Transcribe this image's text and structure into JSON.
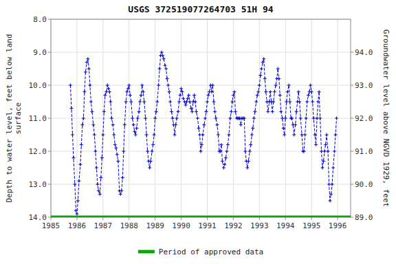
{
  "chart_data": {
    "type": "line",
    "title": "USGS 372519077264703 51H 94",
    "y_label": "Depth to water level, feet below land\nsurface",
    "y2_label": "Groundwater level above NGVD 1929, feet",
    "ylim": [
      14.0,
      8.0
    ],
    "yticks": [
      {
        "value": 8.0,
        "label": "8.0"
      },
      {
        "value": 9.0,
        "label": "9.0"
      },
      {
        "value": 10.0,
        "label": "10.0"
      },
      {
        "value": 11.0,
        "label": "11.0"
      },
      {
        "value": 12.0,
        "label": "12.0"
      },
      {
        "value": 13.0,
        "label": "13.0"
      },
      {
        "value": 14.0,
        "label": "14.0"
      }
    ],
    "y2lim": [
      89.0,
      95.0
    ],
    "y2ticks": [
      {
        "value": 89.0,
        "label": "89.0"
      },
      {
        "value": 90.0,
        "label": "90.0"
      },
      {
        "value": 91.0,
        "label": "91.0"
      },
      {
        "value": 92.0,
        "label": "92.0"
      },
      {
        "value": 93.0,
        "label": "93.0"
      },
      {
        "value": 94.0,
        "label": "94.0"
      }
    ],
    "xlim": [
      1985.0,
      1996.5
    ],
    "xticks": [
      1985,
      1986,
      1987,
      1988,
      1989,
      1990,
      1991,
      1992,
      1993,
      1994,
      1995,
      1996
    ],
    "grid": true,
    "legend": "bottom",
    "series": [
      {
        "color": "#0000CC",
        "marker": "plus",
        "line_style": "dashed",
        "x": [
          1985.75,
          1985.79,
          1985.83,
          1985.87,
          1985.92,
          1985.96,
          1986.0,
          1986.04,
          1986.08,
          1986.13,
          1986.17,
          1986.21,
          1986.25,
          1986.29,
          1986.33,
          1986.38,
          1986.42,
          1986.46,
          1986.5,
          1986.54,
          1986.58,
          1986.63,
          1986.67,
          1986.71,
          1986.75,
          1986.79,
          1986.83,
          1986.88,
          1986.92,
          1986.96,
          1987.0,
          1987.04,
          1987.08,
          1987.13,
          1987.17,
          1987.21,
          1987.25,
          1987.29,
          1987.33,
          1987.38,
          1987.42,
          1987.46,
          1987.5,
          1987.54,
          1987.58,
          1987.63,
          1987.67,
          1987.71,
          1987.75,
          1987.79,
          1987.83,
          1987.88,
          1987.92,
          1987.96,
          1988.0,
          1988.04,
          1988.08,
          1988.13,
          1988.17,
          1988.21,
          1988.25,
          1988.29,
          1988.33,
          1988.38,
          1988.42,
          1988.46,
          1988.5,
          1988.54,
          1988.58,
          1988.63,
          1988.67,
          1988.71,
          1988.75,
          1988.79,
          1988.83,
          1988.88,
          1988.92,
          1988.96,
          1989.0,
          1989.04,
          1989.08,
          1989.13,
          1989.17,
          1989.21,
          1989.25,
          1989.29,
          1989.33,
          1989.38,
          1989.42,
          1989.46,
          1989.5,
          1989.54,
          1989.58,
          1989.63,
          1989.67,
          1989.71,
          1989.75,
          1989.79,
          1989.83,
          1989.88,
          1989.92,
          1989.96,
          1990.0,
          1990.04,
          1990.08,
          1990.13,
          1990.17,
          1990.21,
          1990.25,
          1990.29,
          1990.33,
          1990.38,
          1990.42,
          1990.46,
          1990.5,
          1990.54,
          1990.58,
          1990.63,
          1990.67,
          1990.71,
          1990.75,
          1990.79,
          1990.83,
          1990.88,
          1990.92,
          1990.96,
          1991.0,
          1991.04,
          1991.08,
          1991.13,
          1991.17,
          1991.21,
          1991.25,
          1991.29,
          1991.33,
          1991.38,
          1991.42,
          1991.46,
          1991.5,
          1991.54,
          1991.58,
          1991.63,
          1991.67,
          1991.71,
          1991.75,
          1991.79,
          1991.83,
          1991.88,
          1991.92,
          1991.96,
          1992.0,
          1992.04,
          1992.08,
          1992.13,
          1992.17,
          1992.21,
          1992.25,
          1992.29,
          1992.33,
          1992.38,
          1992.42,
          1992.46,
          1992.5,
          1992.54,
          1992.58,
          1992.63,
          1992.67,
          1992.71,
          1992.75,
          1992.79,
          1992.83,
          1992.88,
          1992.92,
          1992.96,
          1993.0,
          1993.04,
          1993.08,
          1993.13,
          1993.17,
          1993.21,
          1993.25,
          1993.29,
          1993.33,
          1993.38,
          1993.42,
          1993.46,
          1993.5,
          1993.54,
          1993.58,
          1993.63,
          1993.67,
          1993.71,
          1993.75,
          1993.79,
          1993.83,
          1993.88,
          1993.92,
          1993.96,
          1994.0,
          1994.04,
          1994.08,
          1994.13,
          1994.17,
          1994.21,
          1994.25,
          1994.29,
          1994.33,
          1994.38,
          1994.42,
          1994.46,
          1994.5,
          1994.54,
          1994.58,
          1994.63,
          1994.67,
          1994.71,
          1994.75,
          1994.79,
          1994.83,
          1994.88,
          1994.92,
          1994.96,
          1995.0,
          1995.04,
          1995.08,
          1995.13,
          1995.17,
          1995.21,
          1995.25,
          1995.29,
          1995.33,
          1995.38,
          1995.42,
          1995.46,
          1995.5,
          1995.54,
          1995.58,
          1995.63,
          1995.67,
          1995.71,
          1995.75,
          1995.79,
          1995.83,
          1995.88,
          1995.92,
          1995.96
        ],
        "values": [
          10.0,
          10.7,
          11.5,
          12.2,
          13.0,
          13.8,
          13.9,
          13.5,
          12.9,
          12.4,
          11.8,
          11.2,
          11.0,
          10.2,
          9.6,
          9.3,
          9.2,
          9.5,
          10.0,
          10.5,
          10.8,
          11.2,
          11.5,
          12.0,
          12.5,
          13.0,
          13.2,
          13.3,
          12.8,
          12.2,
          11.5,
          10.8,
          10.3,
          10.2,
          10.0,
          10.1,
          10.2,
          10.5,
          11.0,
          11.2,
          11.5,
          11.8,
          11.9,
          12.1,
          12.3,
          13.2,
          13.3,
          13.2,
          12.8,
          12.0,
          11.2,
          10.5,
          10.2,
          10.1,
          10.0,
          10.3,
          10.5,
          11.0,
          11.2,
          11.4,
          11.5,
          11.3,
          11.0,
          10.8,
          10.5,
          10.3,
          10.0,
          10.2,
          10.5,
          11.0,
          11.5,
          12.0,
          12.3,
          12.5,
          12.3,
          12.0,
          11.8,
          11.5,
          11.0,
          10.8,
          10.5,
          10.0,
          9.5,
          9.1,
          9.0,
          9.1,
          9.2,
          9.4,
          9.5,
          9.8,
          10.0,
          10.2,
          10.5,
          10.8,
          11.0,
          11.2,
          11.5,
          11.2,
          11.0,
          10.8,
          10.5,
          10.3,
          10.1,
          10.2,
          10.4,
          10.5,
          10.6,
          10.5,
          10.4,
          10.3,
          10.5,
          10.7,
          10.8,
          10.5,
          10.3,
          10.5,
          10.8,
          11.0,
          11.3,
          11.5,
          12.0,
          11.8,
          11.5,
          11.2,
          11.0,
          10.8,
          10.5,
          10.3,
          10.2,
          10.0,
          10.2,
          10.0,
          10.5,
          10.8,
          11.0,
          11.2,
          11.5,
          12.0,
          12.0,
          11.8,
          12.3,
          12.5,
          12.4,
          12.2,
          12.0,
          11.8,
          11.5,
          11.0,
          10.8,
          10.5,
          10.3,
          10.2,
          10.8,
          11.0,
          11.0,
          11.0,
          11.0,
          11.2,
          11.0,
          11.0,
          11.0,
          12.0,
          12.3,
          12.5,
          12.3,
          12.0,
          11.8,
          11.5,
          11.3,
          11.0,
          10.8,
          10.5,
          10.3,
          10.2,
          10.0,
          9.7,
          9.5,
          9.3,
          9.2,
          9.8,
          10.2,
          10.5,
          10.8,
          10.5,
          10.2,
          10.5,
          10.8,
          10.5,
          10.2,
          10.0,
          9.8,
          9.5,
          9.8,
          10.3,
          10.8,
          11.0,
          11.3,
          11.5,
          11.0,
          10.5,
          10.2,
          10.0,
          10.5,
          11.0,
          11.0,
          11.2,
          11.5,
          11.2,
          10.8,
          10.5,
          10.2,
          10.5,
          11.0,
          11.5,
          12.0,
          12.0,
          11.5,
          11.0,
          10.5,
          10.3,
          10.2,
          10.0,
          10.2,
          10.5,
          11.0,
          11.5,
          11.8,
          11.0,
          10.5,
          10.2,
          11.0,
          12.0,
          12.5,
          12.3,
          12.0,
          11.8,
          11.5,
          12.0,
          13.0,
          13.5,
          13.3,
          13.0,
          12.5,
          12.0,
          11.5,
          11.0
        ]
      },
      {
        "name": "Period of approved data",
        "type": "hline",
        "color": "#00AA00",
        "values": [
          14.0
        ]
      }
    ]
  }
}
